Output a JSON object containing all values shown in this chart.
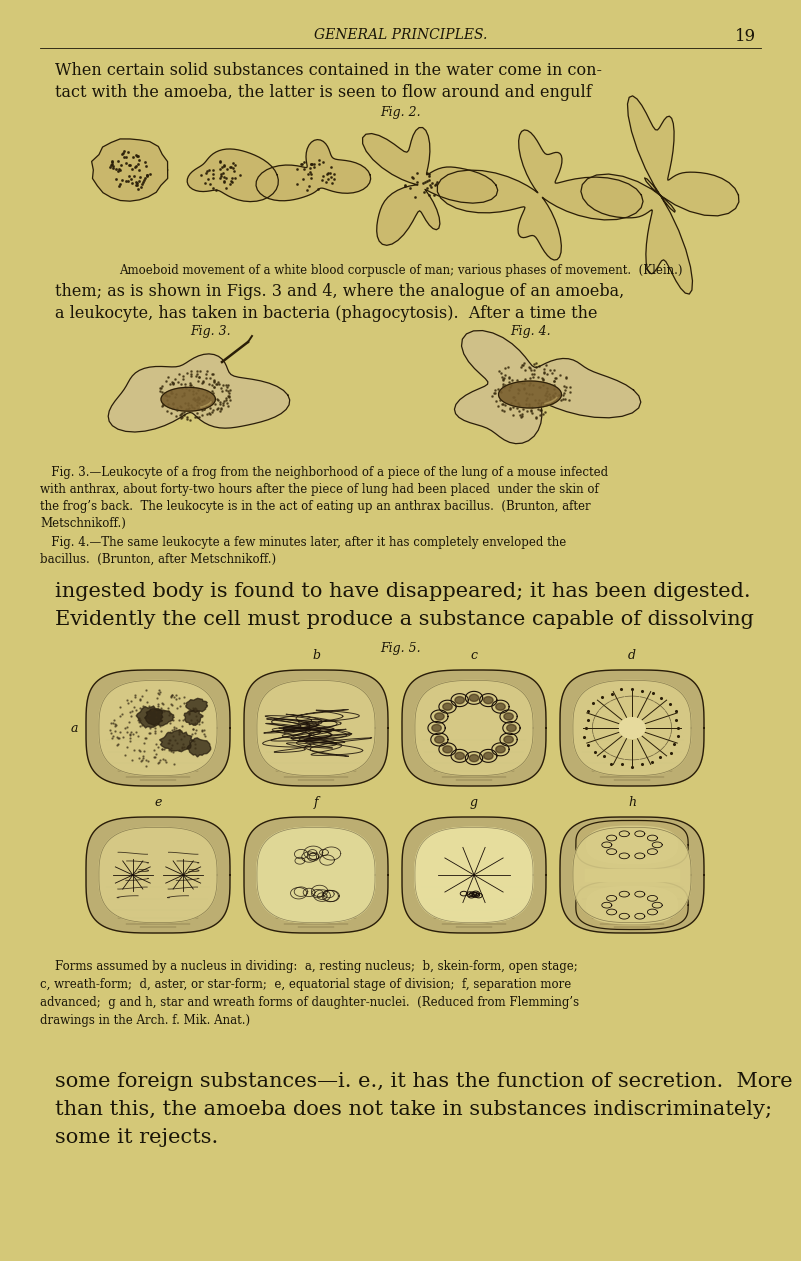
{
  "bg_color": "#d4c878",
  "page_width": 8.01,
  "page_height": 12.61,
  "dpi": 100,
  "header_text": "GENERAL PRINCIPLES.",
  "page_number": "19",
  "body_color": "#1a1508",
  "fig2_label": "Fig. 2.",
  "fig2_caption": "Amoeboid movement of a white blood corpuscle of man; various phases of movement.  (Klein.)",
  "para1_line1": "them; as is shown in Figs. 3 and 4, where the analogue of an amoeba,",
  "para1_line2": "a leukocyte, has taken in bacteria (phagocytosis).  After a time the",
  "fig3_label": "Fig. 3.",
  "fig4_label": "Fig. 4.",
  "fig34_cap1": "   Fig. 3.—Leukocyte of a frog from the neighborhood of a piece of the lung of a mouse infected",
  "fig34_cap2": "with anthrax, about forty-two hours after the piece of lung had been placed  under the skin of",
  "fig34_cap3": "the frog’s back.  The leukocyte is in the act of eating up an anthrax bacillus.  (Brunton, after",
  "fig34_cap4": "Metschnikoff.)",
  "fig34_cap5": "   Fig. 4.—The same leukocyte a few minutes later, after it has completely enveloped the",
  "fig34_cap6": "bacillus.  (Brunton, after Metschnikoff.)",
  "para2_line1": "ingested body is found to have disappeared; it has been digested.",
  "para2_line2": "Evidently the cell must produce a substance capable of dissolving",
  "fig5_label": "Fig. 5.",
  "fig5_cap1": "    Forms assumed by a nucleus in dividing:  a, resting nucleus;  b, skein-form, open stage;",
  "fig5_cap2": "c, wreath-form;  d, aster, or star-form;  e, equatorial stage of division;  f, separation more",
  "fig5_cap3": "advanced;  g and h, star and wreath forms of daughter-nuclei.  (Reduced from Flemming’s",
  "fig5_cap4": "drawings in the Arch. f. Mik. Anat.)",
  "para3_line1": "some foreign substances—i. e., it has the function of secretion.  More",
  "para3_line2": "than this, the amoeba does not take in substances indiscriminately;",
  "para3_line3": "some it rejects."
}
